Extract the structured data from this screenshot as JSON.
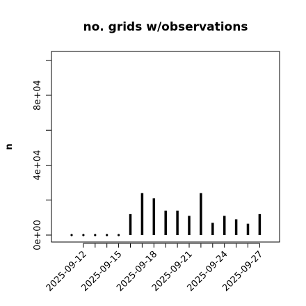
{
  "chart_data": {
    "type": "bar",
    "title": "no. grids w/observations",
    "xlabel": "",
    "ylabel": "n",
    "x": [
      "2025-09-11",
      "2025-09-12",
      "2025-09-13",
      "2025-09-14",
      "2025-09-15",
      "2025-09-16",
      "2025-09-17",
      "2025-09-18",
      "2025-09-19",
      "2025-09-20",
      "2025-09-21",
      "2025-09-22",
      "2025-09-23",
      "2025-09-24",
      "2025-09-25",
      "2025-09-26",
      "2025-09-27"
    ],
    "values": [
      0,
      0,
      0,
      0,
      0,
      12000,
      24000,
      21000,
      14000,
      14000,
      11000,
      24000,
      7000,
      11000,
      9000,
      6500,
      12000
    ],
    "ylim": [
      0,
      100000
    ],
    "y_ticks": [
      "0e+00",
      "4e+04",
      "8e+04"
    ],
    "x_tick_labels": [
      {
        "label": "2025-09-12",
        "color": "#000000"
      },
      {
        "label": "2025-09-15",
        "color": "#000000"
      },
      {
        "label": "2025-09-18",
        "color": "#228B22"
      },
      {
        "label": "2025-09-21",
        "color": "#000000"
      },
      {
        "label": "2025-09-24",
        "color": "#000000"
      },
      {
        "label": "2025-09-27",
        "color": "#000000"
      }
    ],
    "bar_color": "#000000",
    "highlight_color": "#228B22",
    "grid": false
  }
}
